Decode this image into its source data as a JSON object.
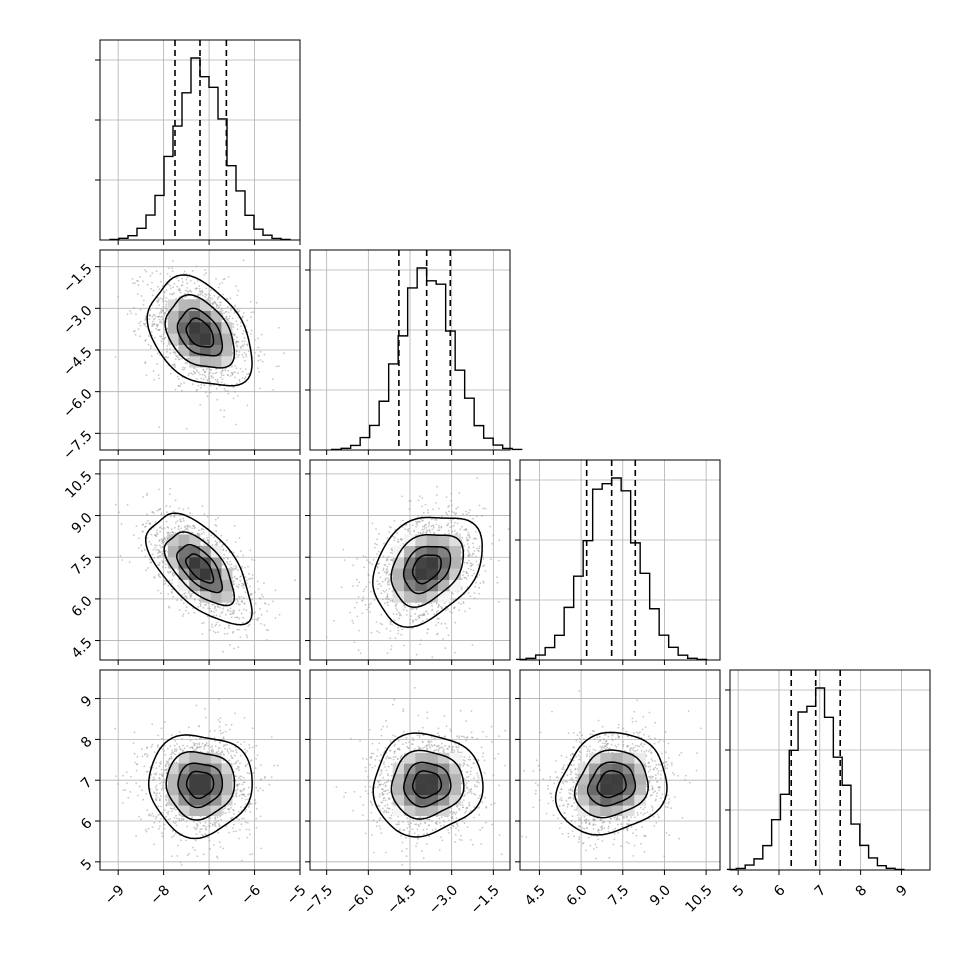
{
  "chart_data": {
    "type": "corner",
    "grid": true,
    "parameters": [
      {
        "ticks": [
          -9,
          -8,
          -7,
          -6,
          -5
        ],
        "tick_labels": [
          "−9",
          "−8",
          "−7",
          "−6",
          "−5"
        ],
        "range": [
          -9.4,
          -5.0
        ],
        "median": -7.2,
        "q16": -7.75,
        "q84": -6.62,
        "sigma": 0.55
      },
      {
        "ticks": [
          -7.5,
          -6.0,
          -4.5,
          -3.0,
          -1.5
        ],
        "tick_labels": [
          "−7.5",
          "−6.0",
          "−4.5",
          "−3.0",
          "−1.5"
        ],
        "range": [
          -8.1,
          -0.9
        ],
        "median": -3.9,
        "q16": -4.9,
        "q84": -3.05,
        "sigma": 0.95
      },
      {
        "ticks": [
          4.5,
          6.0,
          7.5,
          9.0,
          10.5
        ],
        "tick_labels": [
          "4.5",
          "6.0",
          "7.5",
          "9.0",
          "10.5"
        ],
        "range": [
          3.8,
          11.0
        ],
        "median": 7.1,
        "q16": 6.2,
        "q84": 7.95,
        "sigma": 0.95
      },
      {
        "ticks": [
          5,
          6,
          7,
          8,
          9
        ],
        "tick_labels": [
          "5",
          "6",
          "7",
          "8",
          "9"
        ],
        "range": [
          4.8,
          9.7
        ],
        "median": 6.9,
        "q16": 6.3,
        "q84": 7.5,
        "sigma": 0.6
      }
    ],
    "correlations": [
      {
        "pair": [
          1,
          0
        ],
        "rho": -0.35
      },
      {
        "pair": [
          2,
          0
        ],
        "rho": -0.6
      },
      {
        "pair": [
          2,
          1
        ],
        "rho": 0.3
      },
      {
        "pair": [
          3,
          0
        ],
        "rho": 0.0
      },
      {
        "pair": [
          3,
          1
        ],
        "rho": 0.05
      },
      {
        "pair": [
          3,
          2
        ],
        "rho": 0.15
      }
    ],
    "contour_levels_sigma": [
      0.5,
      1.0,
      1.5,
      2.0
    ],
    "colors": {
      "line": "#000000",
      "points": "#9a9a9a",
      "grid": "#b0b0b0",
      "hist_fill": "#ffffff"
    }
  }
}
